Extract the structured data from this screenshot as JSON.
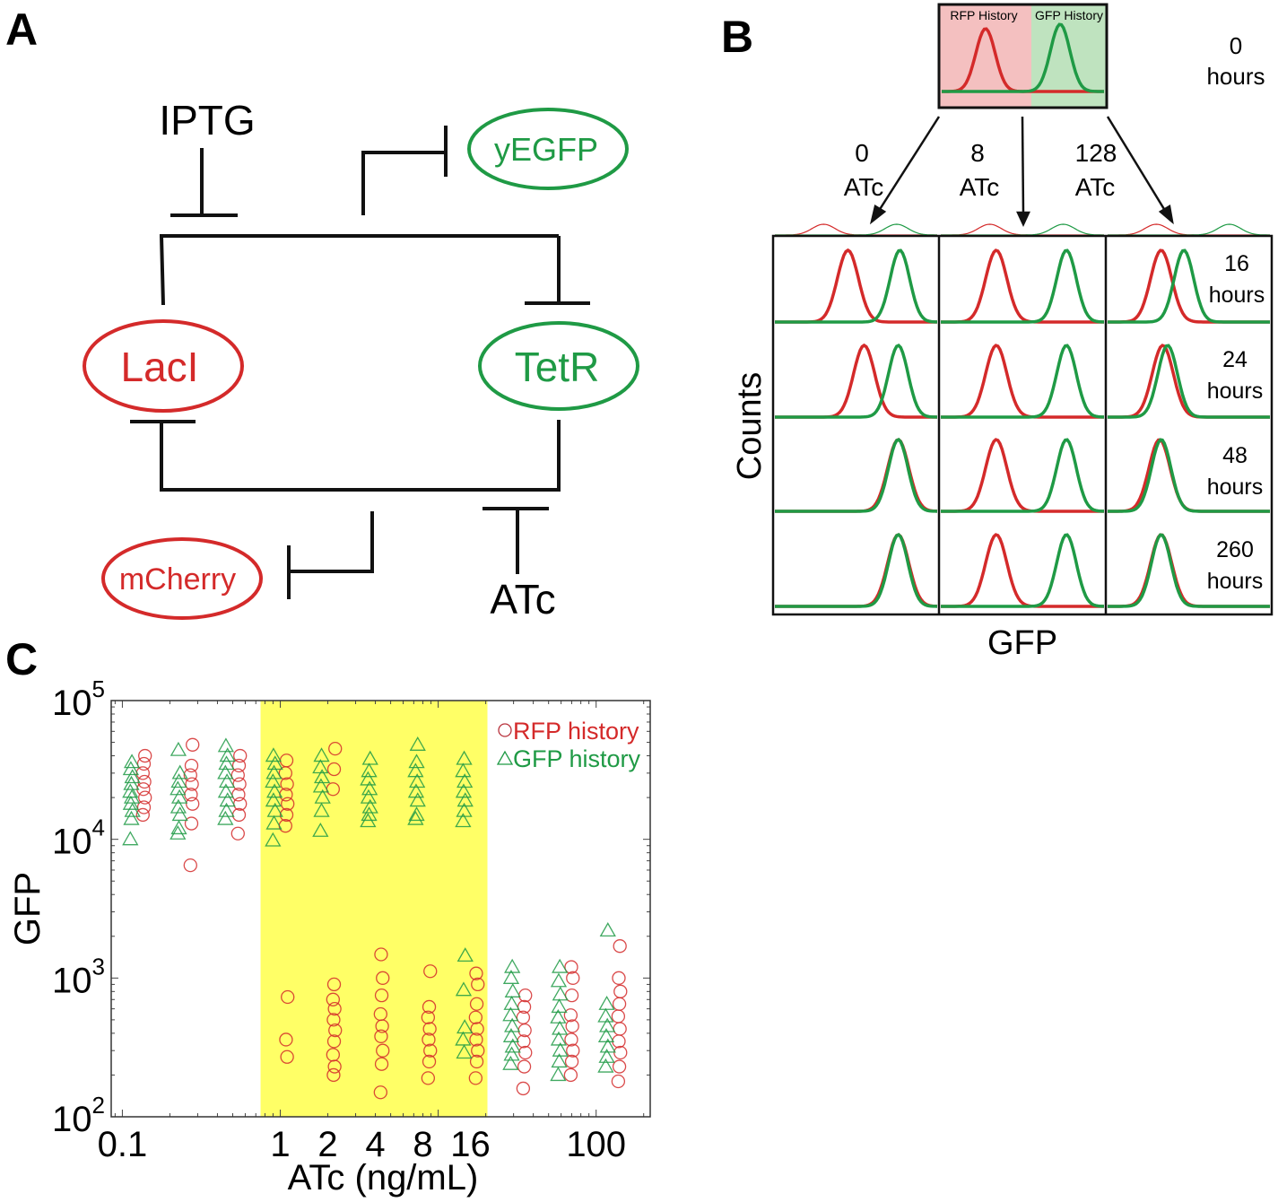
{
  "panels": {
    "a": "A",
    "b": "B",
    "c": "C"
  },
  "diagram": {
    "inducer_top": "IPTG",
    "inducer_bottom": "ATc",
    "reporter_top": "yEGFP",
    "reporter_bottom": "mCherry",
    "repressor_left": "LacI",
    "repressor_right": "TetR",
    "colors": {
      "red": "#d42a2a",
      "green": "#1f9a45"
    }
  },
  "chart_data": [
    {
      "type": "line",
      "panel": "B",
      "start_box": {
        "left_label": "RFP History",
        "right_label": "GFP History",
        "time_value": "0",
        "time_unit": "hours"
      },
      "columns": [
        {
          "value": "0",
          "unit": "ATc"
        },
        {
          "value": "8",
          "unit": "ATc"
        },
        {
          "value": "128",
          "unit": "ATc"
        }
      ],
      "rows": [
        {
          "value": "16",
          "unit": "hours",
          "peaks": [
            {
              "rfp": 45,
              "gfp": 77
            },
            {
              "rfp": 34,
              "gfp": 77
            },
            {
              "rfp": 33,
              "gfp": 47
            }
          ]
        },
        {
          "value": "24",
          "unit": "hours",
          "peaks": [
            {
              "rfp": 55,
              "gfp": 76
            },
            {
              "rfp": 34,
              "gfp": 77
            },
            {
              "rfp": 34,
              "gfp": 37
            }
          ]
        },
        {
          "value": "48",
          "unit": "hours",
          "peaks": [
            {
              "rfp": 76,
              "gfp": 76
            },
            {
              "rfp": 34,
              "gfp": 77
            },
            {
              "rfp": 32,
              "gfp": 33
            }
          ]
        },
        {
          "value": "260",
          "unit": "hours",
          "peaks": [
            {
              "rfp": 76,
              "gfp": 76
            },
            {
              "rfp": 34,
              "gfp": 77
            },
            {
              "rfp": 33,
              "gfp": 33
            }
          ]
        }
      ],
      "xlabel": "GFP",
      "ylabel": "Counts",
      "series_colors": {
        "rfp_history": "#d42a2a",
        "gfp_history": "#1f9a45"
      }
    },
    {
      "type": "scatter",
      "panel": "C",
      "xlabel": "ATc (ng/mL)",
      "ylabel": "GFP",
      "xscale": "log",
      "yscale": "log",
      "xlim": [
        0.085,
        220
      ],
      "ylim": [
        100,
        100000
      ],
      "x_ticks": [
        "0.1",
        "1",
        "2",
        "4",
        "8",
        "16",
        "100"
      ],
      "x_tick_values": [
        0.1,
        1,
        2,
        4,
        8,
        16,
        100
      ],
      "y_ticks": [
        {
          "base": "10",
          "exp": "2"
        },
        {
          "base": "10",
          "exp": "3"
        },
        {
          "base": "10",
          "exp": "4"
        },
        {
          "base": "10",
          "exp": "5"
        }
      ],
      "highlight_region": {
        "x": [
          0.75,
          20.5
        ],
        "color": "#ffff66"
      },
      "legend": {
        "position": "top-right"
      },
      "concentrations": [
        0.125,
        0.25,
        0.5,
        1,
        2,
        4,
        8,
        16,
        32,
        64,
        128
      ],
      "series": [
        {
          "name": "RFP history",
          "marker": "circle",
          "color": "#d42a2a",
          "values": [
            [
              15000,
              17000,
              20000,
              23000,
              26000,
              30000,
              35000,
              40000
            ],
            [
              6500,
              13000,
              18000,
              21000,
              25000,
              29000,
              34000,
              48000
            ],
            [
              11000,
              15000,
              18000,
              21000,
              25000,
              29000,
              34000,
              40000
            ],
            [
              12500,
              15000,
              18000,
              21000,
              25000,
              30000,
              37000,
              730,
              360,
              270
            ],
            [
              23000,
              32000,
              45000,
              200,
              230,
              280,
              350,
              420,
              500,
              600,
              700,
              900
            ],
            [
              150,
              240,
              300,
              380,
              450,
              550,
              750,
              1000,
              1480
            ],
            [
              190,
              250,
              300,
              360,
              430,
              520,
              620,
              1120
            ],
            [
              190,
              250,
              300,
              360,
              430,
              520,
              650,
              900,
              1080
            ],
            [
              160,
              230,
              290,
              350,
              420,
              520,
              620,
              750
            ],
            [
              200,
              250,
              300,
              360,
              450,
              540,
              750,
              1000,
              1200
            ],
            [
              180,
              230,
              290,
              350,
              430,
              530,
              650,
              800,
              1000,
              1700
            ]
          ]
        },
        {
          "name": "GFP history",
          "marker": "triangle",
          "color": "#1f9a45",
          "values": [
            [
              10000,
              14000,
              16000,
              18000,
              20000,
              22000,
              25000,
              28000,
              32000,
              36000
            ],
            [
              11000,
              12000,
              15000,
              17000,
              20000,
              23000,
              26000,
              30000,
              44000
            ],
            [
              14000,
              16000,
              19000,
              22000,
              26000,
              30000,
              35000,
              40000,
              47000
            ],
            [
              9800,
              13000,
              16000,
              19000,
              22000,
              26000,
              30000,
              35000,
              40000
            ],
            [
              11500,
              16000,
              20000,
              24000,
              28000,
              33000,
              40000
            ],
            [
              13500,
              15000,
              17000,
              20000,
              23000,
              27000,
              31000,
              38000
            ],
            [
              14000,
              15000,
              19000,
              22000,
              26000,
              31000,
              36000,
              48000
            ],
            [
              13500,
              16000,
              19000,
              22000,
              26000,
              31000,
              38000,
              1450,
              820,
              440,
              360,
              290
            ],
            [
              240,
              280,
              320,
              380,
              450,
              540,
              650,
              800,
              1000,
              1200
            ],
            [
              200,
              250,
              300,
              360,
              430,
              520,
              620,
              760,
              950,
              1200
            ],
            [
              230,
              270,
              320,
              380,
              450,
              530,
              650,
              2200
            ]
          ]
        }
      ]
    }
  ]
}
